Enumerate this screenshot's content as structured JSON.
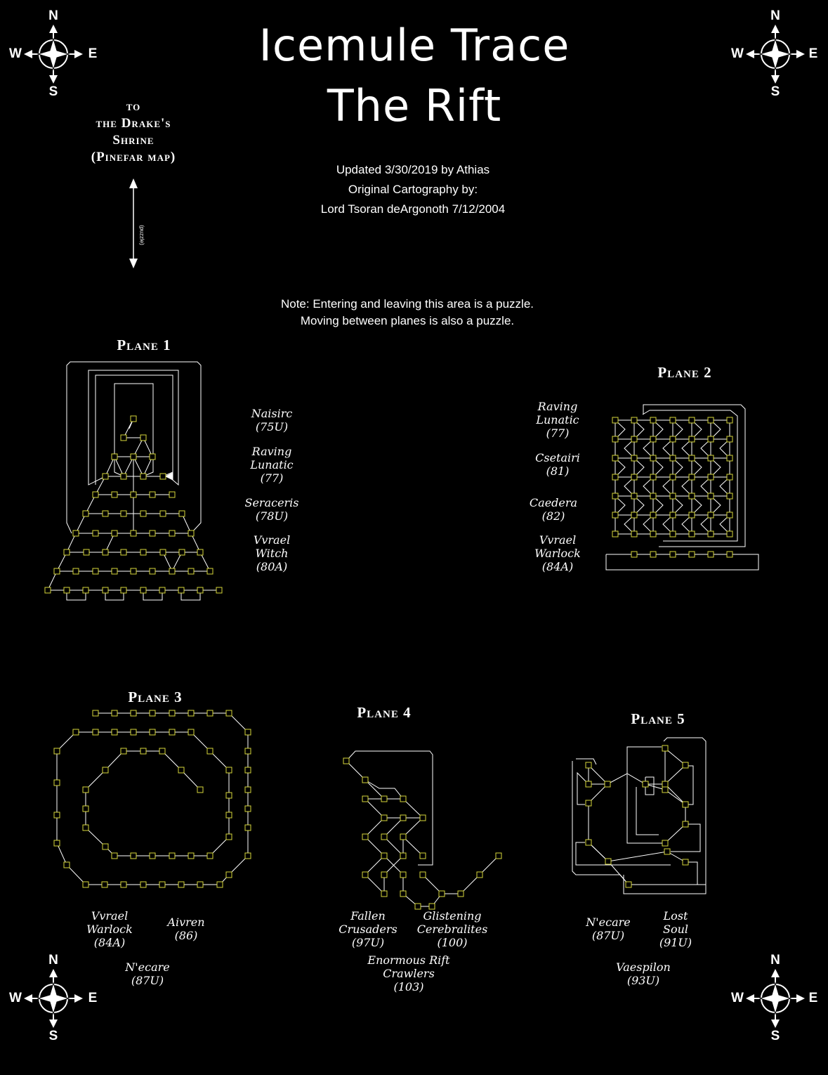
{
  "title": {
    "line1": "Icemule Trace",
    "line2": "The Rift"
  },
  "credits": {
    "line1": "Updated 3/30/2019 by Athias",
    "line2": "Original Cartography by:",
    "line3": "Lord Tsoran deArgonoth 7/12/2004"
  },
  "exit_label": {
    "line1": "to",
    "line2": "the Drake's",
    "line3": "Shrine",
    "line4": "(Pinefar map)",
    "puzzle": "(puzzle)"
  },
  "note": {
    "line1": "Note:  Entering and leaving this area is a puzzle.",
    "line2": "Moving between planes is also a puzzle."
  },
  "compass": {
    "n": "N",
    "s": "S",
    "e": "E",
    "w": "W"
  },
  "planes": {
    "p1": {
      "label": "Plane 1",
      "creatures": [
        "Naisirc",
        "(75U)",
        "Raving",
        "Lunatic",
        "(77)",
        "Seraceris",
        "(78U)",
        "Vvrael",
        "Witch",
        "(80A)"
      ]
    },
    "p2": {
      "label": "Plane 2",
      "creatures": [
        "Raving",
        "Lunatic",
        "(77)",
        "Csetairi",
        "(81)",
        "Caedera",
        "(82)",
        "Vvrael",
        "Warlock",
        "(84A)"
      ]
    },
    "p3": {
      "label": "Plane 3",
      "creatures": [
        "Vvrael",
        "Warlock",
        "(84A)",
        "Aivren",
        "(86)",
        "N'ecare",
        "(87U)"
      ]
    },
    "p4": {
      "label": "Plane 4",
      "creatures": [
        "Fallen",
        "Crusaders",
        "(97U)",
        "Glistening",
        "Cerebralites",
        "(100)",
        "Enormous Rift",
        "Crawlers",
        "(103)"
      ]
    },
    "p5": {
      "label": "Plane 5",
      "creatures": [
        "N'ecare",
        "(87U)",
        "Lost",
        "Soul",
        "(91U)",
        "Vaespilon",
        "(93U)"
      ]
    }
  },
  "colors": {
    "background": "#000000",
    "text": "#ffffff",
    "room_fill": "#000000",
    "room_border": "#d6d63a",
    "path": "#ffffff"
  }
}
